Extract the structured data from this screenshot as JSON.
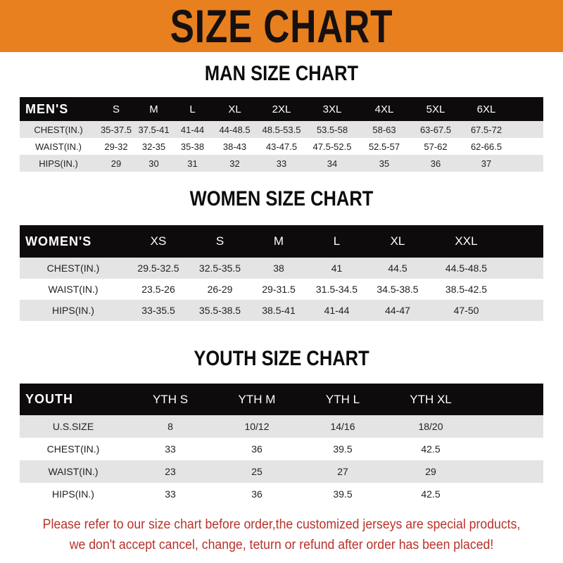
{
  "banner": {
    "title": "SIZE CHART",
    "color": "#e8801f"
  },
  "men": {
    "title": "MAN SIZE CHART",
    "header": [
      "MEN'S",
      "S",
      "M",
      "L",
      "XL",
      "2XL",
      "3XL",
      "4XL",
      "5XL",
      "6XL"
    ],
    "rows": [
      [
        "CHEST(IN.)",
        "35-37.5",
        "37.5-41",
        "41-44",
        "44-48.5",
        "48.5-53.5",
        "53.5-58",
        "58-63",
        "63-67.5",
        "67.5-72"
      ],
      [
        "WAIST(IN.)",
        "29-32",
        "32-35",
        "35-38",
        "38-43",
        "43-47.5",
        "47.5-52.5",
        "52.5-57",
        "57-62",
        "62-66.5"
      ],
      [
        "HIPS(IN.)",
        "29",
        "30",
        "31",
        "32",
        "33",
        "34",
        "35",
        "36",
        "37"
      ]
    ]
  },
  "women": {
    "title": "WOMEN SIZE CHART",
    "header": [
      "WOMEN'S",
      "XS",
      "S",
      "M",
      "L",
      "XL",
      "XXL"
    ],
    "rows": [
      [
        "CHEST(IN.)",
        "29.5-32.5",
        "32.5-35.5",
        "38",
        "41",
        "44.5",
        "44.5-48.5"
      ],
      [
        "WAIST(IN.)",
        "23.5-26",
        "26-29",
        "29-31.5",
        "31.5-34.5",
        "34.5-38.5",
        "38.5-42.5"
      ],
      [
        "HIPS(IN.)",
        "33-35.5",
        "35.5-38.5",
        "38.5-41",
        "41-44",
        "44-47",
        "47-50"
      ]
    ]
  },
  "youth": {
    "title": "YOUTH SIZE CHART",
    "header": [
      "YOUTH",
      "YTH S",
      "YTH M",
      "YTH L",
      "YTH XL"
    ],
    "rows": [
      [
        "U.S.SIZE",
        "8",
        "10/12",
        "14/16",
        "18/20"
      ],
      [
        "CHEST(IN.)",
        "33",
        "36",
        "39.5",
        "42.5"
      ],
      [
        "WAIST(IN.)",
        "23",
        "25",
        "27",
        "29"
      ],
      [
        "HIPS(IN.)",
        "33",
        "36",
        "39.5",
        "42.5"
      ]
    ]
  },
  "footer": {
    "line1": "Please refer to our size chart before order,the customized jerseys are special products,",
    "line2": "we don't accept cancel, change, teturn or refund after order has been placed!",
    "color": "#b8322a"
  }
}
